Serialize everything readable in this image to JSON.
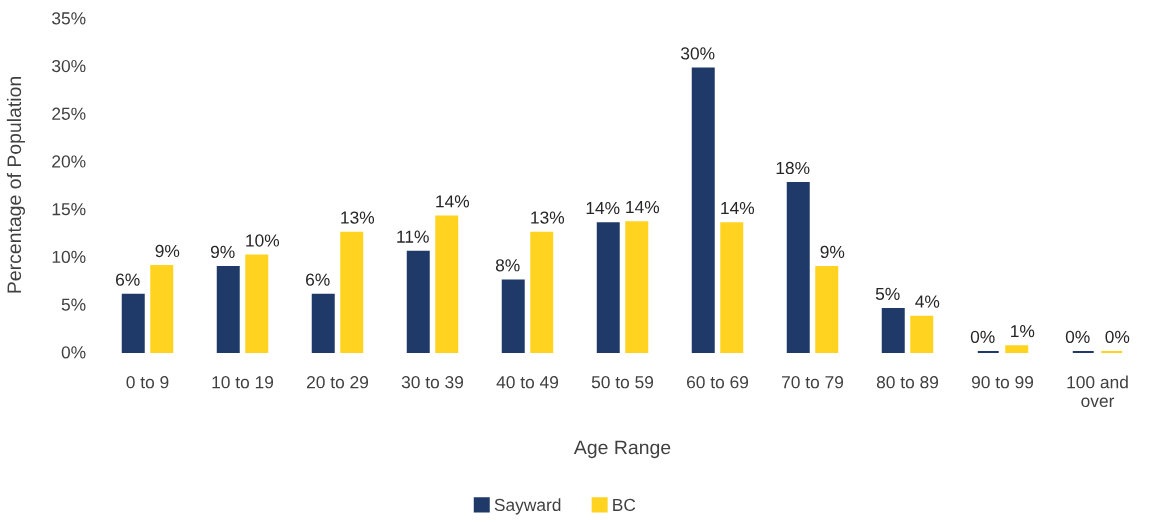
{
  "chart_data": {
    "type": "bar",
    "categories": [
      "0 to 9",
      "10 to 19",
      "20 to 29",
      "30 to 39",
      "40 to 49",
      "50 to 59",
      "60 to 69",
      "70 to 79",
      "80 to 89",
      "90 to 99",
      "100 and\nover"
    ],
    "series": [
      {
        "name": "Sayward",
        "color": "#1f3a68",
        "values": [
          6.0,
          8.9,
          6.0,
          10.5,
          7.5,
          13.5,
          29.7,
          17.7,
          4.5,
          0.0,
          0.0
        ],
        "value_labels": [
          "6%",
          "9%",
          "6%",
          "11%",
          "8%",
          "14%",
          "30%",
          "18%",
          "5%",
          "0%",
          "0%"
        ]
      },
      {
        "name": "BC",
        "color": "#ffd320",
        "values": [
          9.0,
          10.1,
          12.5,
          14.2,
          12.5,
          13.6,
          13.5,
          8.9,
          3.7,
          0.6,
          0.0
        ],
        "value_labels": [
          "9%",
          "10%",
          "13%",
          "14%",
          "13%",
          "14%",
          "14%",
          "9%",
          "4%",
          "1%",
          "0%"
        ]
      }
    ],
    "xlabel": "Age Range",
    "ylabel": "Percentage of Population",
    "ylim": [
      0,
      35
    ],
    "yticks": [
      {
        "value": 0,
        "label": "0%"
      },
      {
        "value": 5,
        "label": "5%"
      },
      {
        "value": 10,
        "label": "10%"
      },
      {
        "value": 15,
        "label": "15%"
      },
      {
        "value": 20,
        "label": "20%"
      },
      {
        "value": 25,
        "label": "25%"
      },
      {
        "value": 30,
        "label": "30%"
      },
      {
        "value": 35,
        "label": "35%"
      }
    ],
    "legend": "bottom"
  }
}
